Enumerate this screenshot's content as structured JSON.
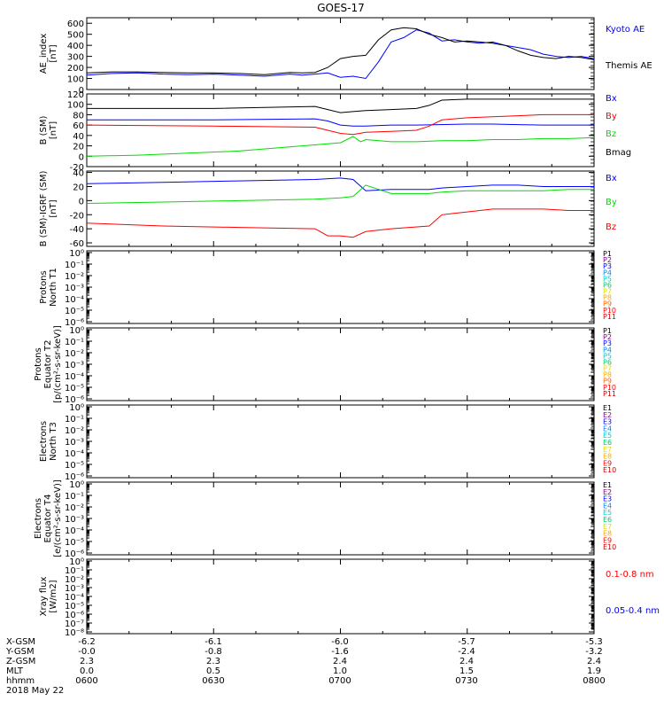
{
  "title": "GOES-17",
  "colors": {
    "blue": "#0000ff",
    "black": "#000000",
    "red": "#ff0000",
    "green": "#00dd00",
    "cyan": "#00cccc",
    "yellow": "#dddd00",
    "orange": "#ff9900",
    "purple": "#800080",
    "darkred": "#cc0000"
  },
  "chart_data": [
    {
      "id": "ae",
      "type": "line",
      "ylabel": "AE_index [nT]",
      "yticks": [
        "600",
        "500",
        "400",
        "300",
        "200",
        "100",
        "0"
      ],
      "ylim": [
        0,
        650
      ],
      "x_hours": [
        6.0,
        8.0
      ],
      "series": [
        {
          "name": "Kyoto AE",
          "color": "blue",
          "x": [
            6.0,
            6.1,
            6.2,
            6.3,
            6.4,
            6.5,
            6.6,
            6.7,
            6.8,
            6.85,
            6.9,
            6.95,
            7.0,
            7.05,
            7.1,
            7.15,
            7.2,
            7.25,
            7.3,
            7.35,
            7.4,
            7.45,
            7.5,
            7.55,
            7.6,
            7.65,
            7.7,
            7.75,
            7.8,
            7.85,
            7.9,
            7.95,
            8.0
          ],
          "y": [
            130,
            145,
            150,
            140,
            135,
            140,
            130,
            120,
            140,
            130,
            140,
            150,
            110,
            120,
            100,
            250,
            430,
            470,
            540,
            510,
            440,
            450,
            430,
            420,
            430,
            400,
            380,
            360,
            320,
            300,
            290,
            300,
            280
          ]
        },
        {
          "name": "Themis AE",
          "color": "black",
          "x": [
            6.0,
            6.1,
            6.2,
            6.3,
            6.4,
            6.5,
            6.6,
            6.7,
            6.8,
            6.85,
            6.9,
            6.95,
            7.0,
            7.05,
            7.1,
            7.15,
            7.2,
            7.25,
            7.3,
            7.35,
            7.4,
            7.45,
            7.5,
            7.55,
            7.6,
            7.65,
            7.7,
            7.75,
            7.8,
            7.85,
            7.9,
            7.95,
            8.0
          ],
          "y": [
            150,
            160,
            160,
            155,
            150,
            150,
            145,
            135,
            155,
            150,
            155,
            200,
            280,
            300,
            310,
            450,
            540,
            560,
            550,
            500,
            470,
            430,
            440,
            430,
            420,
            400,
            350,
            310,
            290,
            280,
            300,
            290,
            270
          ]
        }
      ]
    },
    {
      "id": "b",
      "type": "line",
      "ylabel": "B (SM) [nT]",
      "yticks": [
        "120",
        "100",
        "80",
        "60",
        "40",
        "20",
        "0",
        "-20"
      ],
      "ylim": [
        -20,
        120
      ],
      "series": [
        {
          "name": "Bx",
          "color": "blue",
          "x": [
            6.0,
            6.5,
            6.9,
            6.95,
            7.0,
            7.05,
            7.1,
            7.2,
            7.3,
            7.5,
            7.6,
            7.7,
            7.8,
            7.9,
            8.0
          ],
          "y": [
            70,
            70,
            72,
            68,
            60,
            58,
            58,
            60,
            60,
            62,
            62,
            61,
            60,
            60,
            60
          ]
        },
        {
          "name": "By",
          "color": "red",
          "x": [
            6.0,
            6.5,
            6.9,
            6.95,
            7.0,
            7.05,
            7.1,
            7.2,
            7.3,
            7.35,
            7.4,
            7.5,
            7.6,
            7.7,
            7.8,
            7.9,
            8.0
          ],
          "y": [
            60,
            58,
            56,
            50,
            44,
            42,
            46,
            48,
            50,
            58,
            70,
            74,
            76,
            78,
            80,
            80,
            80
          ]
        },
        {
          "name": "Bz",
          "color": "green",
          "x": [
            6.0,
            6.2,
            6.4,
            6.6,
            6.8,
            6.95,
            7.0,
            7.05,
            7.08,
            7.1,
            7.2,
            7.3,
            7.4,
            7.5,
            7.6,
            7.7,
            7.8,
            7.9,
            8.0
          ],
          "y": [
            0,
            2,
            6,
            10,
            18,
            24,
            26,
            38,
            28,
            32,
            28,
            28,
            30,
            30,
            32,
            32,
            34,
            34,
            36
          ]
        },
        {
          "name": "Bmag",
          "color": "black",
          "x": [
            6.0,
            6.5,
            6.9,
            6.95,
            7.0,
            7.05,
            7.1,
            7.2,
            7.3,
            7.35,
            7.4,
            7.5,
            7.6,
            7.7,
            7.8,
            7.9,
            8.0
          ],
          "y": [
            92,
            92,
            96,
            90,
            84,
            86,
            88,
            90,
            92,
            98,
            108,
            110,
            110,
            110,
            110,
            110,
            110
          ]
        }
      ]
    },
    {
      "id": "dbsm",
      "type": "line",
      "ylabel": "B (SM)-IGRF (SM) [nT]",
      "yticks": [
        "40",
        "20",
        "0",
        "-20",
        "-40",
        "-60"
      ],
      "ylim": [
        -65,
        42
      ],
      "series": [
        {
          "name": "Bx",
          "color": "blue",
          "x": [
            6.0,
            6.3,
            6.6,
            6.9,
            7.0,
            7.05,
            7.1,
            7.2,
            7.35,
            7.4,
            7.5,
            7.6,
            7.7,
            7.8,
            7.9,
            8.0
          ],
          "y": [
            24,
            26,
            28,
            30,
            32,
            30,
            14,
            16,
            16,
            18,
            20,
            22,
            22,
            20,
            20,
            20
          ]
        },
        {
          "name": "By",
          "color": "green",
          "x": [
            6.0,
            6.3,
            6.6,
            6.9,
            7.0,
            7.05,
            7.1,
            7.2,
            7.35,
            7.4,
            7.5,
            7.6,
            7.7,
            7.8,
            7.9,
            8.0
          ],
          "y": [
            -4,
            -2,
            0,
            2,
            4,
            6,
            22,
            10,
            10,
            12,
            14,
            14,
            14,
            14,
            16,
            16
          ]
        },
        {
          "name": "Bz",
          "color": "red",
          "x": [
            6.0,
            6.3,
            6.6,
            6.9,
            6.95,
            7.0,
            7.05,
            7.1,
            7.2,
            7.35,
            7.4,
            7.5,
            7.6,
            7.7,
            7.8,
            7.9,
            8.0
          ],
          "y": [
            -32,
            -36,
            -38,
            -40,
            -50,
            -50,
            -52,
            -44,
            -40,
            -36,
            -20,
            -16,
            -12,
            -12,
            -12,
            -14,
            -14
          ]
        }
      ]
    },
    {
      "id": "p1",
      "type": "line",
      "ylabel": "Protons North T1",
      "yticks": [
        "10⁰",
        "10⁻¹",
        "10⁻²",
        "10⁻³",
        "10⁻⁴",
        "10⁻⁵",
        "10⁻⁶"
      ],
      "legend": [
        "P1",
        "P2",
        "P3",
        "P4",
        "P5",
        "P6",
        "P7",
        "P8",
        "P9",
        "P10",
        "P11"
      ],
      "series": []
    },
    {
      "id": "p2",
      "type": "line",
      "ylabel": "Protons Equator T2 [p/(cm²-s-sr-keV)]",
      "yticks": [
        "10⁰",
        "10⁻¹",
        "10⁻²",
        "10⁻³",
        "10⁻⁴",
        "10⁻⁵",
        "10⁻⁶"
      ],
      "legend": [
        "P1",
        "P2",
        "P3",
        "P4",
        "P5",
        "P6",
        "P7",
        "P8",
        "P9",
        "P10",
        "P11"
      ],
      "series": []
    },
    {
      "id": "e1",
      "type": "line",
      "ylabel": "Electrons North T3",
      "yticks": [
        "10⁰",
        "10⁻¹",
        "10⁻²",
        "10⁻³",
        "10⁻⁴",
        "10⁻⁵",
        "10⁻⁶"
      ],
      "legend": [
        "E1",
        "E2",
        "E3",
        "E4",
        "E5",
        "E6",
        "E7",
        "E8",
        "E9",
        "E10"
      ],
      "series": []
    },
    {
      "id": "e2",
      "type": "line",
      "ylabel": "Electrons Equator T4 [e/(cm²-s-sr-keV)]",
      "yticks": [
        "10⁰",
        "10⁻¹",
        "10⁻²",
        "10⁻³",
        "10⁻⁴",
        "10⁻⁵",
        "10⁻⁶"
      ],
      "legend": [
        "E1",
        "E2",
        "E3",
        "E4",
        "E5",
        "E6",
        "E7",
        "E8",
        "E9",
        "E10"
      ],
      "series": []
    },
    {
      "id": "xray",
      "type": "line",
      "ylabel": "Xray flux [W/m2]",
      "yticks": [
        "10⁰",
        "10⁻¹",
        "10⁻²",
        "10⁻³",
        "10⁻⁴",
        "10⁻⁵",
        "10⁻⁶",
        "10⁻⁷",
        "10⁻⁸"
      ],
      "legend": [
        "0.1-0.8 nm",
        "0.05-0.4 nm"
      ],
      "series": []
    }
  ],
  "footer": {
    "row_labels": [
      "X-GSM",
      "Y-GSM",
      "Z-GSM",
      "MLT",
      "hhmm"
    ],
    "date": "2018 May 22",
    "columns": [
      {
        "values": [
          "-6.2",
          "-0.0",
          "2.3",
          "0.0",
          "0600"
        ]
      },
      {
        "values": [
          "-6.1",
          "-0.8",
          "2.3",
          "0.5",
          "0630"
        ]
      },
      {
        "values": [
          "-6.0",
          "-1.6",
          "2.4",
          "1.0",
          "0700"
        ]
      },
      {
        "values": [
          "-5.7",
          "-2.4",
          "2.4",
          "1.5",
          "0730"
        ]
      },
      {
        "values": [
          "-5.3",
          "-3.2",
          "2.4",
          "1.9",
          "0800"
        ]
      }
    ]
  }
}
